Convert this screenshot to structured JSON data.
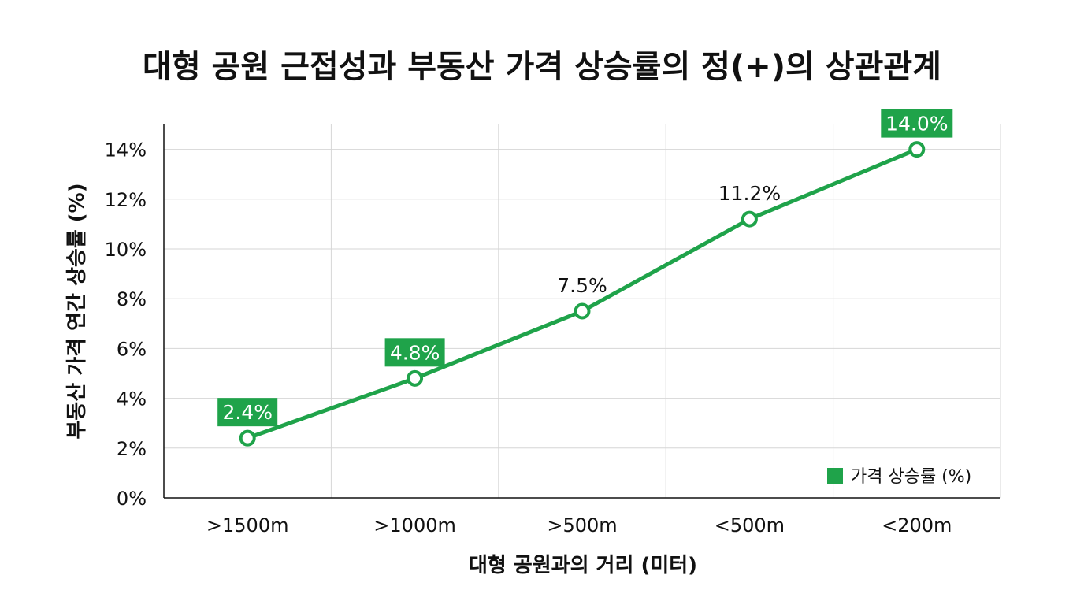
{
  "chart_data": {
    "type": "line",
    "title": "대형 공원 근접성과 부동산 가격 상승률의 정(+)의 상관관계",
    "xlabel": "대형 공원과의 거리 (미터)",
    "ylabel": "부동산 가격 연간 상승률 (%)",
    "categories": [
      ">1500m",
      ">1000m",
      ">500m",
      "<500m",
      "<200m"
    ],
    "series": [
      {
        "name": "가격 상승률 (%)",
        "values": [
          2.4,
          4.8,
          7.5,
          11.2,
          14.0
        ],
        "color": "#1fa34a"
      }
    ],
    "data_labels": [
      "2.4%",
      "4.8%",
      "7.5%",
      "11.2%",
      "14.0%"
    ],
    "highlighted_labels": [
      true,
      true,
      false,
      false,
      true
    ],
    "ylim": [
      0,
      15
    ],
    "yticks": [
      0,
      2,
      4,
      6,
      8,
      10,
      12,
      14
    ],
    "ytick_labels": [
      "0%",
      "2%",
      "4%",
      "6%",
      "8%",
      "10%",
      "12%",
      "14%"
    ],
    "grid": true,
    "legend": {
      "position": "bottom-right",
      "label": "가격 상승률 (%)"
    }
  }
}
